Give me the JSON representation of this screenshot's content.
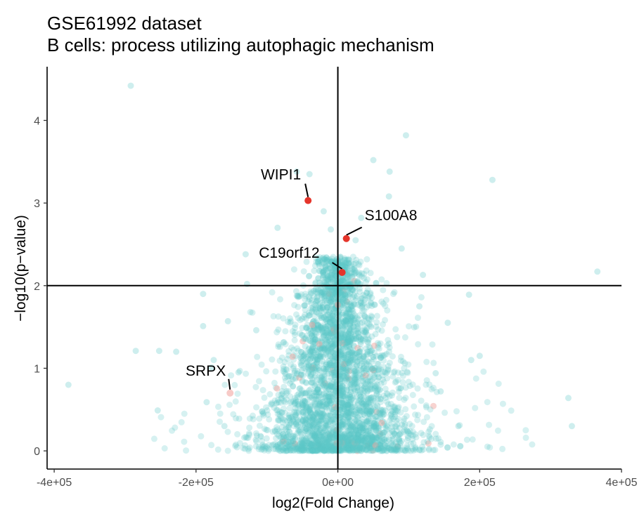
{
  "chart_data": {
    "type": "scatter",
    "title": "GSE61992 dataset",
    "subtitle": "B cells: process utilizing autophagic mechanism",
    "xlabel": "log2(Fold Change)",
    "ylabel": "−log10(p−value)",
    "xlim": [
      -410000,
      400000
    ],
    "ylim": [
      -0.22,
      4.65
    ],
    "x_ticks": [
      -400000,
      -200000,
      0,
      200000,
      400000
    ],
    "x_tick_labels": [
      "-4e+05",
      "-2e+05",
      "0e+00",
      "2e+05",
      "4e+05"
    ],
    "y_ticks": [
      0,
      1,
      2,
      3,
      4
    ],
    "y_tick_labels": [
      "0",
      "1",
      "2",
      "3",
      "4"
    ],
    "threshold_lines": {
      "x": 0,
      "y": 2
    },
    "grid": false,
    "colors": {
      "background_points": "#5cc7c7",
      "highlight_points": "#e5352b",
      "faint_red": "#f2a7a2"
    },
    "highlighted_genes": [
      {
        "name": "WIPI1",
        "x": -42000,
        "y": 3.03
      },
      {
        "name": "S100A8",
        "x": 12000,
        "y": 2.57
      },
      {
        "name": "C19orf12",
        "x": 6000,
        "y": 2.16
      },
      {
        "name": "SRPX",
        "x": -152000,
        "y": 0.7
      }
    ],
    "outlier_points": [
      [
        -292000,
        4.42
      ],
      [
        96000,
        3.82
      ],
      [
        218000,
        3.28
      ],
      [
        50000,
        3.52
      ],
      [
        73000,
        3.38
      ],
      [
        -58000,
        3.38
      ],
      [
        -40000,
        3.35
      ],
      [
        366000,
        2.17
      ],
      [
        -380000,
        0.8
      ],
      [
        -285000,
        1.21
      ],
      [
        -252000,
        1.21
      ],
      [
        -228000,
        1.2
      ],
      [
        -254000,
        0.49
      ],
      [
        325000,
        0.64
      ],
      [
        330000,
        0.3
      ],
      [
        200000,
        1.15
      ],
      [
        188000,
        1.1
      ],
      [
        185000,
        1.89
      ],
      [
        -190000,
        1.9
      ],
      [
        -190000,
        1.51
      ],
      [
        -155000,
        1.57
      ],
      [
        120000,
        2.13
      ],
      [
        72000,
        3.08
      ],
      [
        -85000,
        2.7
      ],
      [
        155000,
        1.55
      ],
      [
        170000,
        0.3
      ],
      [
        -178000,
        1.01
      ],
      [
        -175000,
        1.1
      ],
      [
        -185000,
        0.59
      ],
      [
        90000,
        2.45
      ],
      [
        -130000,
        2.38
      ],
      [
        -128000,
        2.02
      ],
      [
        115000,
        1.75
      ],
      [
        -160000,
        0.3
      ],
      [
        138000,
        0.94
      ],
      [
        145000,
        0.72
      ],
      [
        -115000,
        1.46
      ],
      [
        -140000,
        0.95
      ],
      [
        25000,
        2.55
      ],
      [
        -20000,
        2.9
      ],
      [
        -10000,
        2.68
      ],
      [
        33000,
        2.82
      ]
    ],
    "dense_cloud": {
      "n_points": 3600,
      "x_center": 0,
      "y_range": [
        0,
        2.3
      ]
    }
  }
}
